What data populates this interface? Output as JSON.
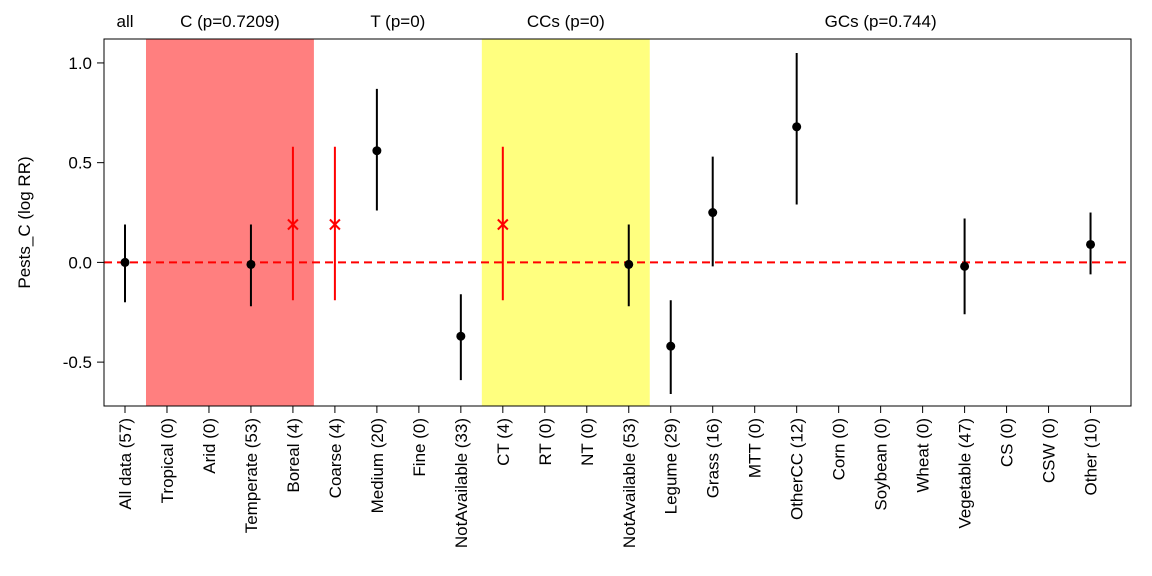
{
  "chart_data": {
    "type": "scatter",
    "ylabel": "Pests_C (log RR)",
    "ylim": [
      -0.72,
      1.12
    ],
    "yticks": [
      -0.5,
      0.0,
      0.5,
      1.0
    ],
    "ytick_labels": [
      "-0.5",
      "0.0",
      "0.5",
      "1.0"
    ],
    "reference_line": {
      "y": 0,
      "style": "dashed",
      "color": "#ff0000"
    },
    "groups": [
      {
        "label": "all",
        "start": 0,
        "end": 0,
        "shade": null
      },
      {
        "label": "C (p=0.7209)",
        "start": 1,
        "end": 4,
        "shade": "#ff7f7f"
      },
      {
        "label": "T (p=0)",
        "start": 5,
        "end": 8,
        "shade": null
      },
      {
        "label": "CCs (p=0)",
        "start": 9,
        "end": 12,
        "shade": "#ffff7f"
      },
      {
        "label": "GCs (p=0.744)",
        "start": 13,
        "end": 23,
        "shade": null
      }
    ],
    "categories": [
      "All data (57)",
      "Tropical (0)",
      "Arid (0)",
      "Temperate (53)",
      "Boreal (4)",
      "Coarse (4)",
      "Medium (20)",
      "Fine (0)",
      "NotAvailable (33)",
      "CT (4)",
      "RT (0)",
      "NT (0)",
      "NotAvailable (53)",
      "Legume (29)",
      "Grass (16)",
      "MTT (0)",
      "OtherCC (12)",
      "Corn (0)",
      "Soybean (0)",
      "Wheat (0)",
      "Vegetable (47)",
      "CS (0)",
      "CSW (0)",
      "Other (10)"
    ],
    "series": [
      {
        "points": [
          {
            "category": "All data (57)",
            "y": 0.0,
            "lo": -0.2,
            "hi": 0.19,
            "marker": "dot",
            "color": "#000000"
          },
          {
            "category": "Temperate (53)",
            "y": -0.01,
            "lo": -0.22,
            "hi": 0.19,
            "marker": "dot",
            "color": "#000000"
          },
          {
            "category": "Boreal (4)",
            "y": 0.19,
            "lo": -0.19,
            "hi": 0.58,
            "marker": "cross",
            "color": "#ff0000"
          },
          {
            "category": "Coarse (4)",
            "y": 0.19,
            "lo": -0.19,
            "hi": 0.58,
            "marker": "cross",
            "color": "#ff0000"
          },
          {
            "category": "Medium (20)",
            "y": 0.56,
            "lo": 0.26,
            "hi": 0.87,
            "marker": "dot",
            "color": "#000000"
          },
          {
            "category": "NotAvailable (33)",
            "y": -0.37,
            "lo": -0.59,
            "hi": -0.16,
            "marker": "dot",
            "color": "#000000"
          },
          {
            "category": "CT (4)",
            "y": 0.19,
            "lo": -0.19,
            "hi": 0.58,
            "marker": "cross",
            "color": "#ff0000"
          },
          {
            "category": "NotAvailable (53)",
            "y": -0.01,
            "lo": -0.22,
            "hi": 0.19,
            "marker": "dot",
            "color": "#000000"
          },
          {
            "category": "Legume (29)",
            "y": -0.42,
            "lo": -0.66,
            "hi": -0.19,
            "marker": "dot",
            "color": "#000000"
          },
          {
            "category": "Grass (16)",
            "y": 0.25,
            "lo": -0.02,
            "hi": 0.53,
            "marker": "dot",
            "color": "#000000"
          },
          {
            "category": "OtherCC (12)",
            "y": 0.68,
            "lo": 0.29,
            "hi": 1.05,
            "marker": "dot",
            "color": "#000000"
          },
          {
            "category": "Vegetable (47)",
            "y": -0.02,
            "lo": -0.26,
            "hi": 0.22,
            "marker": "dot",
            "color": "#000000"
          },
          {
            "category": "Other (10)",
            "y": 0.09,
            "lo": -0.06,
            "hi": 0.25,
            "marker": "dot",
            "color": "#000000"
          }
        ]
      }
    ]
  }
}
